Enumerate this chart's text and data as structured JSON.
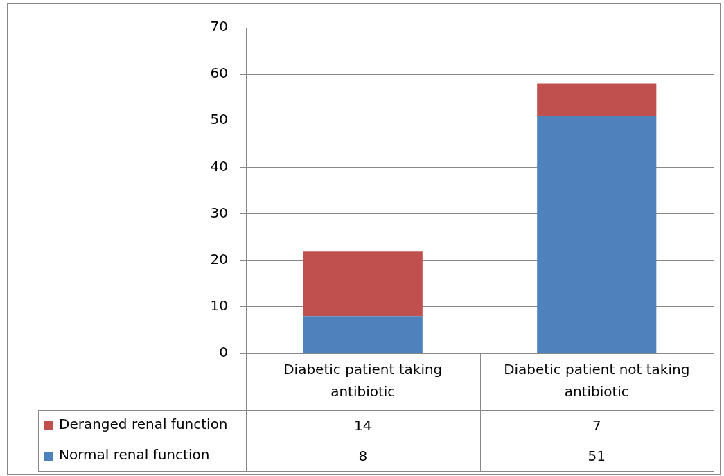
{
  "chart_data": {
    "type": "bar",
    "stacked": true,
    "categories": [
      "Diabetic patient taking antibiotic",
      "Diabetic patient not taking antibiotic"
    ],
    "series": [
      {
        "name": "Normal renal function",
        "color": "#4f81bd",
        "values": [
          8,
          51
        ]
      },
      {
        "name": "Deranged renal function",
        "color": "#c0504d",
        "values": [
          14,
          7
        ]
      }
    ],
    "ylim": [
      0,
      70
    ],
    "yticks": [
      0,
      10,
      20,
      30,
      40,
      50,
      60,
      70
    ],
    "grid": "y",
    "legend": "bottom",
    "data_labels": true
  }
}
